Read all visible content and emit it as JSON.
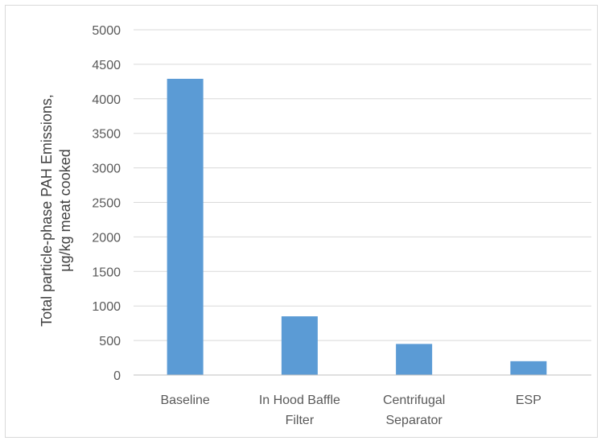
{
  "chart_data": {
    "type": "bar",
    "title": "",
    "xlabel": "",
    "ylabel_lines": [
      "Total particle-phase PAH Emissions,",
      "µg/kg meat cooked"
    ],
    "categories": [
      [
        "Baseline"
      ],
      [
        "In Hood Baffle",
        "Filter"
      ],
      [
        "Centrifugal",
        "Separator"
      ],
      [
        "ESP"
      ]
    ],
    "values": [
      4290,
      850,
      450,
      200
    ],
    "ylim": [
      0,
      5000
    ],
    "yticks": [
      0,
      500,
      1000,
      1500,
      2000,
      2500,
      3000,
      3500,
      4000,
      4500,
      5000
    ],
    "grid": true,
    "legend": "none",
    "bar_color": "#5b9bd5",
    "grid_color": "#d9d9d9",
    "axis_color": "#bfbfbf"
  }
}
